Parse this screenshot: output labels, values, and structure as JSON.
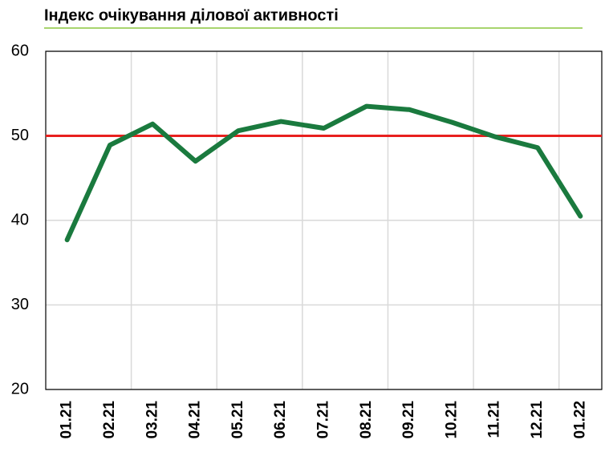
{
  "chart_data": {
    "type": "line",
    "title": "Індекс очікування ділової активності",
    "categories": [
      "01.21",
      "02.21",
      "03.21",
      "04.21",
      "05.21",
      "06.21",
      "07.21",
      "08.21",
      "09.21",
      "10.21",
      "11.21",
      "12.21",
      "01.22"
    ],
    "series": [
      {
        "color": "#1a7a3e",
        "values": [
          37.7,
          48.9,
          51.4,
          47.0,
          50.6,
          51.7,
          50.9,
          53.5,
          53.1,
          51.6,
          49.9,
          48.6,
          40.5
        ]
      }
    ],
    "ylim": [
      20,
      60
    ],
    "yticks": [
      20,
      30,
      40,
      50,
      60
    ],
    "grid": true,
    "reference_line": {
      "value": 50,
      "color": "#e8201e"
    }
  }
}
